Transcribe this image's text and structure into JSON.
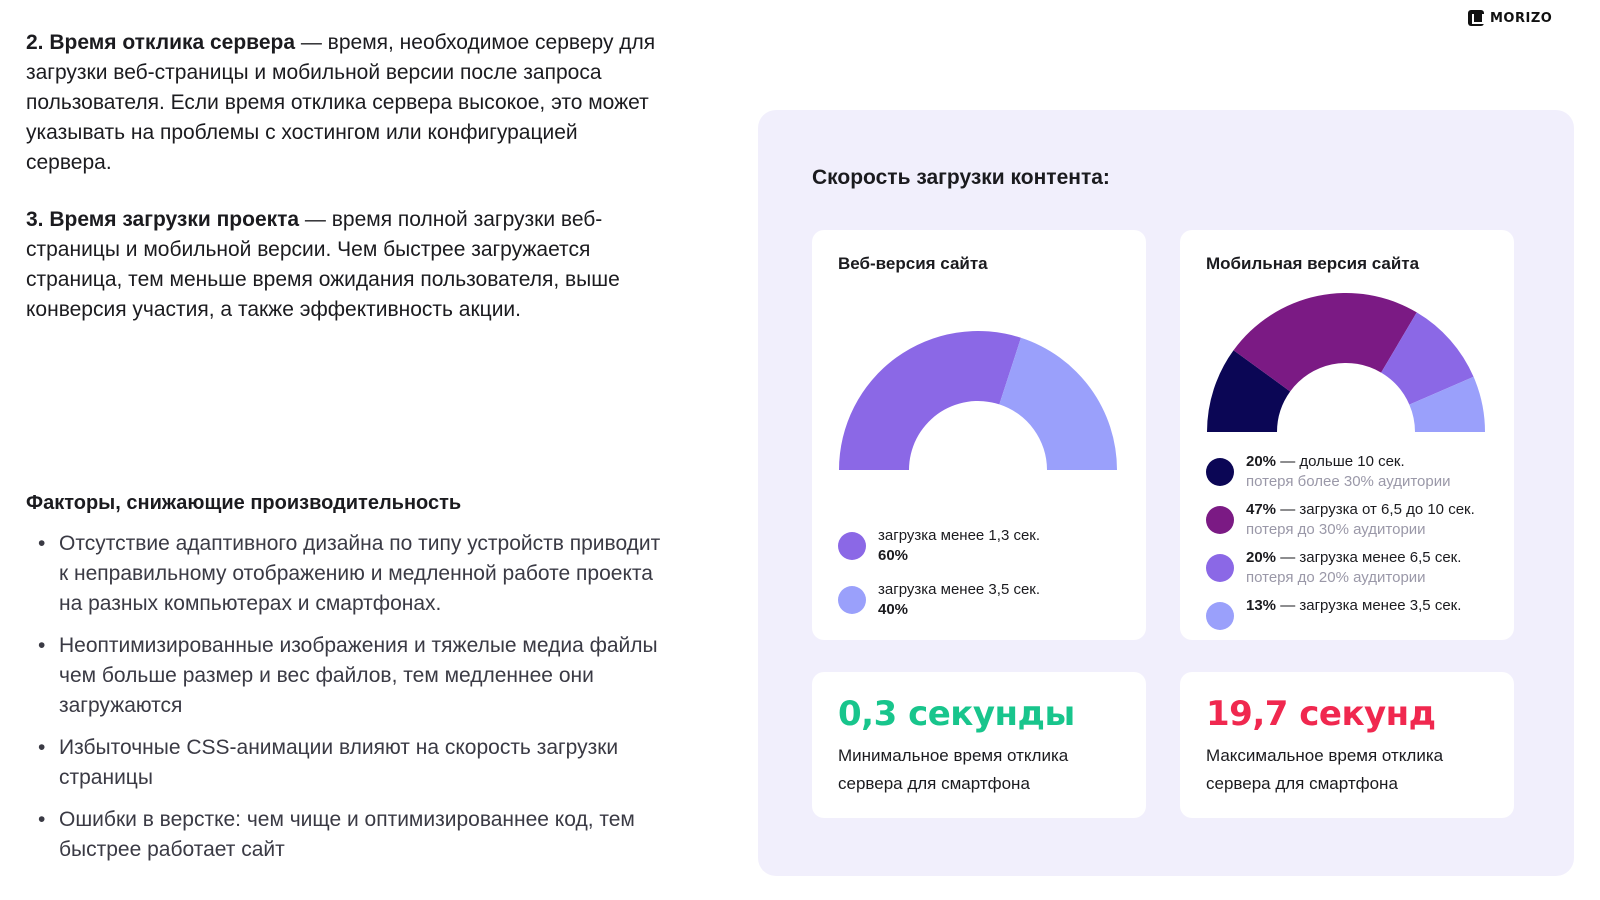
{
  "logo": {
    "text": "MORIZO"
  },
  "intro": {
    "item2": {
      "title": "2. Время отклика сервера",
      "text": " — время, необходимое серверу для загрузки веб-страницы и мобильной версии после запроса пользователя. Если время отклика сервера высокое, это может указывать на проблемы с хостингом или конфигурацией сервера."
    },
    "item3": {
      "title": "3. Время загрузки проекта",
      "text": " — время полной загрузки веб-страницы и мобильной версии. Чем быстрее загружается страница, тем меньше время ожидания пользователя, выше конверсия участия, а также эффективность акции."
    }
  },
  "factors": {
    "title": "Факторы, снижающие производительность",
    "items": [
      "Отсутствие адаптивного дизайна по типу устройств приводит к неправильному отображению и медленной работе проекта на разных компьютерах и смартфонах.",
      "Неоптимизированные изображения и тяжелые медиа файлы чем больше размер и вес файлов, тем медленнее они загружаются",
      "Избыточные CSS-анимации влияют на скорость загрузки страницы",
      "Ошибки в верстке: чем чище и оптимизированнее код, тем быстрее работает сайт"
    ]
  },
  "panel": {
    "title": "Скорость загрузки контента:"
  },
  "colors": {
    "dark_navy": "#0b0655",
    "plum": "#7b1a84",
    "violet": "#8b68e6",
    "periwinkle": "#9aa0fb",
    "green": "#18c58c",
    "red": "#f0284f"
  },
  "chart_data": [
    {
      "type": "pie",
      "title": "Веб-версия сайта",
      "series": [
        {
          "label": "загрузка менее 1,3 сек.",
          "pct_text": "60%",
          "value": 60,
          "color": "#8b68e6"
        },
        {
          "label": "загрузка менее 3,5 сек.",
          "pct_text": "40%",
          "value": 40,
          "color": "#9aa0fb"
        }
      ]
    },
    {
      "type": "pie",
      "title": "Мобильная версия сайта",
      "series": [
        {
          "pct_text": "20%",
          "label": " — дольше 10 сек.",
          "sub": "потеря более 30% аудитории",
          "value": 20,
          "color": "#0b0655"
        },
        {
          "pct_text": "47%",
          "label": " — загрузка от 6,5 до 10 сек.",
          "sub": "потеря до 30% аудитории",
          "value": 47,
          "color": "#7b1a84"
        },
        {
          "pct_text": "20%",
          "label": " — загрузка менее 6,5 сек.",
          "sub": "потеря до 20% аудитории",
          "value": 20,
          "color": "#8b68e6"
        },
        {
          "pct_text": "13%",
          "label": " — загрузка менее 3,5 сек.",
          "sub": "",
          "value": 13,
          "color": "#9aa0fb"
        }
      ]
    }
  ],
  "stats": [
    {
      "value": "0,3 секунды",
      "desc": "Минимальное время отклика сервера для смартфона"
    },
    {
      "value": "19,7 секунд",
      "desc": "Максимальное время отклика сервера для смартфона"
    }
  ]
}
